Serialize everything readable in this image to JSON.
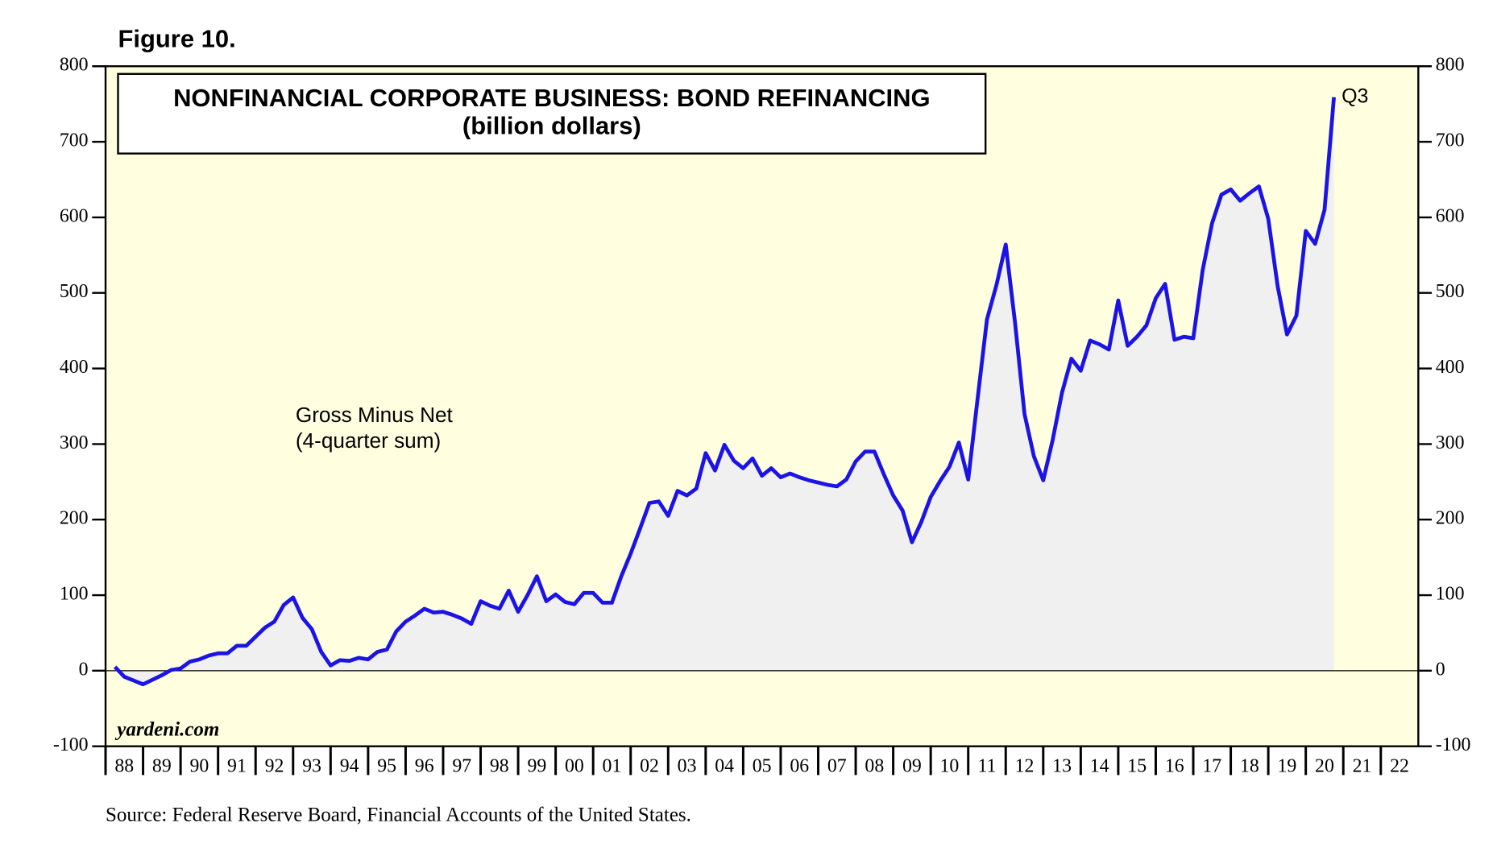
{
  "chart_data": {
    "type": "line",
    "figure_label": "Figure 10.",
    "title": "NONFINANCIAL CORPORATE BUSINESS: BOND REFINANCING",
    "subtitle": "(billion dollars)",
    "annotation": [
      "Gross Minus Net",
      "(4-quarter sum)"
    ],
    "point_label": "Q3",
    "watermark": "yardeni.com",
    "source": "Source: Federal Reserve Board, Financial Accounts of the United States.",
    "color": "#1c14e6",
    "fill": "#f0f0f0",
    "background": "#ffffe0",
    "x": [
      1988.25,
      1988.5,
      1988.75,
      1989,
      1989.25,
      1989.5,
      1989.75,
      1990,
      1990.25,
      1990.5,
      1990.75,
      1991,
      1991.25,
      1991.5,
      1991.75,
      1992,
      1992.25,
      1992.5,
      1992.75,
      1993,
      1993.25,
      1993.5,
      1993.75,
      1994,
      1994.25,
      1994.5,
      1994.75,
      1995,
      1995.25,
      1995.5,
      1995.75,
      1996,
      1996.25,
      1996.5,
      1996.75,
      1997,
      1997.25,
      1997.5,
      1997.75,
      1998,
      1998.25,
      1998.5,
      1998.75,
      1999,
      1999.25,
      1999.5,
      1999.75,
      2000,
      2000.25,
      2000.5,
      2000.75,
      2001,
      2001.25,
      2001.5,
      2001.75,
      2002,
      2002.25,
      2002.5,
      2002.75,
      2003,
      2003.25,
      2003.5,
      2003.75,
      2004,
      2004.25,
      2004.5,
      2004.75,
      2005,
      2005.25,
      2005.5,
      2005.75,
      2006,
      2006.25,
      2006.5,
      2006.75,
      2007,
      2007.25,
      2007.5,
      2007.75,
      2008,
      2008.25,
      2008.5,
      2008.75,
      2009,
      2009.25,
      2009.5,
      2009.75,
      2010,
      2010.25,
      2010.5,
      2010.75,
      2011,
      2011.25,
      2011.5,
      2011.75,
      2012,
      2012.25,
      2012.5,
      2012.75,
      2013,
      2013.25,
      2013.5,
      2013.75,
      2014,
      2014.25,
      2014.5,
      2014.75,
      2015,
      2015.25,
      2015.5,
      2015.75,
      2016,
      2016.25,
      2016.5,
      2016.75,
      2017,
      2017.25,
      2017.5,
      2017.75,
      2018,
      2018.25,
      2018.5,
      2018.75,
      2019,
      2019.25,
      2019.5,
      2019.75,
      2020,
      2020.25,
      2020.5,
      2020.75
    ],
    "values": [
      5,
      -8,
      -13,
      -18,
      -12,
      -6,
      1,
      3,
      12,
      15,
      20,
      23,
      23,
      33,
      33,
      45,
      57,
      65,
      87,
      97,
      70,
      55,
      25,
      7,
      14,
      13,
      17,
      15,
      25,
      28,
      52,
      65,
      73,
      82,
      77,
      78,
      74,
      69,
      62,
      92,
      86,
      82,
      106,
      78,
      100,
      125,
      92,
      101,
      91,
      88,
      103,
      103,
      90,
      90,
      125,
      155,
      188,
      222,
      224,
      205,
      238,
      232,
      241,
      288,
      265,
      299,
      278,
      268,
      281,
      258,
      268,
      256,
      261,
      256,
      252,
      249,
      246,
      244,
      253,
      277,
      290,
      290,
      260,
      232,
      212,
      170,
      197,
      230,
      251,
      270,
      302,
      253,
      360,
      465,
      510,
      564,
      460,
      340,
      284,
      252,
      305,
      368,
      413,
      397,
      437,
      432,
      425,
      490,
      430,
      442,
      457,
      493,
      512,
      438,
      442,
      440,
      530,
      592,
      630,
      637,
      622,
      632,
      641,
      598,
      509,
      445,
      470,
      582,
      565,
      610,
      759
    ],
    "xlim": [
      1988,
      2023
    ],
    "xticks": [
      {
        "value": 1988,
        "label": "88"
      },
      {
        "value": 1989,
        "label": "89"
      },
      {
        "value": 1990,
        "label": "90"
      },
      {
        "value": 1991,
        "label": "91"
      },
      {
        "value": 1992,
        "label": "92"
      },
      {
        "value": 1993,
        "label": "93"
      },
      {
        "value": 1994,
        "label": "94"
      },
      {
        "value": 1995,
        "label": "95"
      },
      {
        "value": 1996,
        "label": "96"
      },
      {
        "value": 1997,
        "label": "97"
      },
      {
        "value": 1998,
        "label": "98"
      },
      {
        "value": 1999,
        "label": "99"
      },
      {
        "value": 2000,
        "label": "00"
      },
      {
        "value": 2001,
        "label": "01"
      },
      {
        "value": 2002,
        "label": "02"
      },
      {
        "value": 2003,
        "label": "03"
      },
      {
        "value": 2004,
        "label": "04"
      },
      {
        "value": 2005,
        "label": "05"
      },
      {
        "value": 2006,
        "label": "06"
      },
      {
        "value": 2007,
        "label": "07"
      },
      {
        "value": 2008,
        "label": "08"
      },
      {
        "value": 2009,
        "label": "09"
      },
      {
        "value": 2010,
        "label": "10"
      },
      {
        "value": 2011,
        "label": "11"
      },
      {
        "value": 2012,
        "label": "12"
      },
      {
        "value": 2013,
        "label": "13"
      },
      {
        "value": 2014,
        "label": "14"
      },
      {
        "value": 2015,
        "label": "15"
      },
      {
        "value": 2016,
        "label": "16"
      },
      {
        "value": 2017,
        "label": "17"
      },
      {
        "value": 2018,
        "label": "18"
      },
      {
        "value": 2019,
        "label": "19"
      },
      {
        "value": 2020,
        "label": "20"
      },
      {
        "value": 2021,
        "label": "21"
      },
      {
        "value": 2022,
        "label": "22"
      }
    ],
    "ylim": [
      -100,
      800
    ],
    "yticks": [
      -100,
      0,
      100,
      200,
      300,
      400,
      500,
      600,
      700,
      800
    ],
    "y2lim": [
      -100,
      800
    ],
    "y2ticks": [
      -100,
      0,
      100,
      200,
      300,
      400,
      500,
      600,
      700,
      800
    ]
  }
}
